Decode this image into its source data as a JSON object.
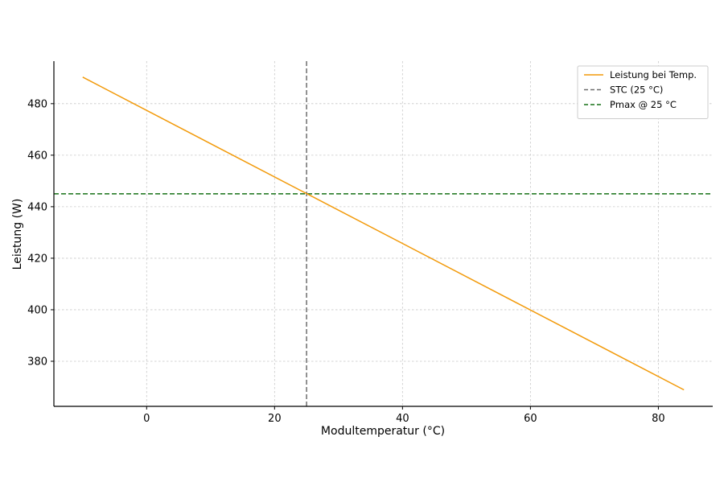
{
  "chart_data": {
    "type": "line",
    "xlabel": "Modultemperatur (°C)",
    "ylabel": "Leistung (W)",
    "xlim": [
      -14.5,
      88.5
    ],
    "ylim": [
      362.5,
      496.5
    ],
    "xticks": [
      0,
      20,
      40,
      60,
      80
    ],
    "yticks": [
      380,
      400,
      420,
      440,
      460,
      480
    ],
    "grid": true,
    "legend_position": "top-right",
    "series": [
      {
        "name": "Leistung bei Temp.",
        "color": "#f29a0a",
        "style": "solid",
        "x": [
          -10,
          84
        ],
        "y": [
          490.3,
          368.9
        ]
      }
    ],
    "reference_lines": [
      {
        "name": "STC (25 °C)",
        "orientation": "vertical",
        "value": 25,
        "color": "#6e6e6e",
        "style": "dashed"
      },
      {
        "name": "Pmax @ 25 °C",
        "orientation": "horizontal",
        "value": 445,
        "color": "#167016",
        "style": "dashed"
      }
    ]
  }
}
